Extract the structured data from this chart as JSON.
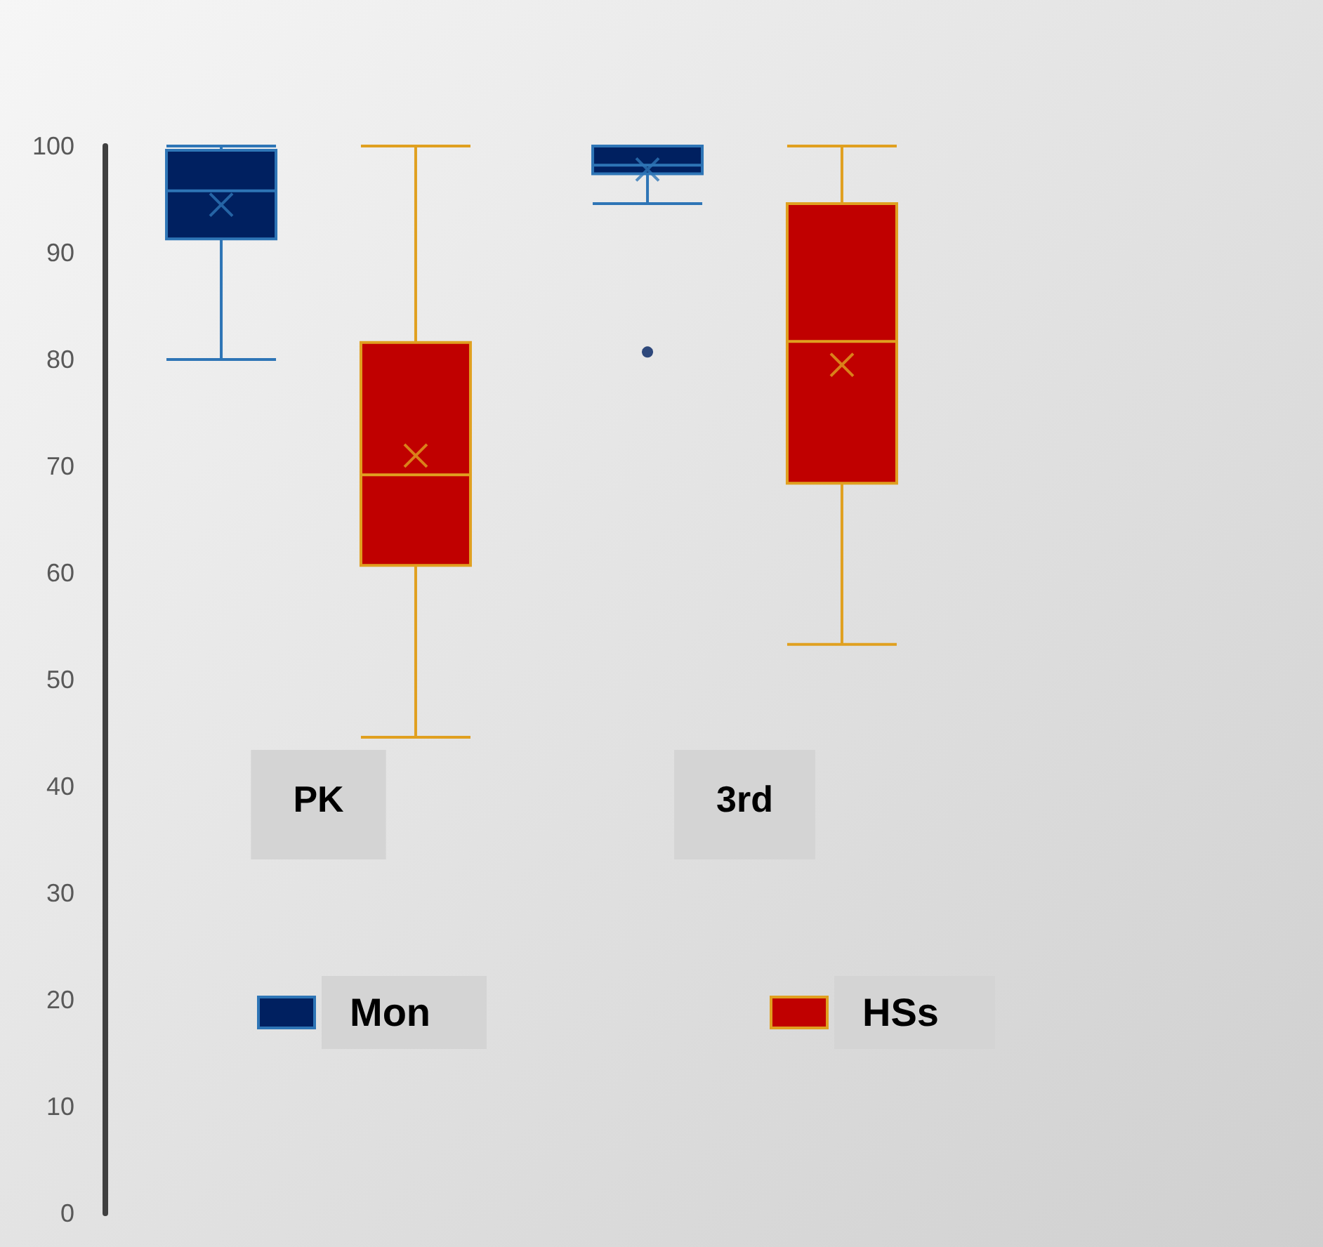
{
  "chart_data": {
    "type": "box",
    "categories": [
      "PK",
      "3rd"
    ],
    "series": [
      {
        "name": "Mon",
        "color": "#002060",
        "boxes": [
          {
            "low": 80,
            "q1": 91.3,
            "median": 95.8,
            "q3": 99.6,
            "high": 100,
            "mean": 94.5
          },
          {
            "low": 94.6,
            "q1": 97.4,
            "median": 98.2,
            "q3": 100,
            "high": 100,
            "mean": 97.8,
            "outliers": [
              80.7
            ]
          }
        ]
      },
      {
        "name": "HSs",
        "color": "#c00000",
        "boxes": [
          {
            "low": 44.6,
            "q1": 60.7,
            "median": 69.2,
            "q3": 81.6,
            "high": 100,
            "mean": 71
          },
          {
            "low": 53.3,
            "q1": 68.4,
            "median": 81.7,
            "q3": 94.6,
            "high": 100,
            "mean": 79.5
          }
        ]
      }
    ],
    "ylim": [
      0,
      100
    ],
    "yticks": [
      0,
      10,
      20,
      30,
      40,
      50,
      60,
      70,
      80,
      90,
      100
    ],
    "grid": false,
    "legend": "bottom"
  }
}
